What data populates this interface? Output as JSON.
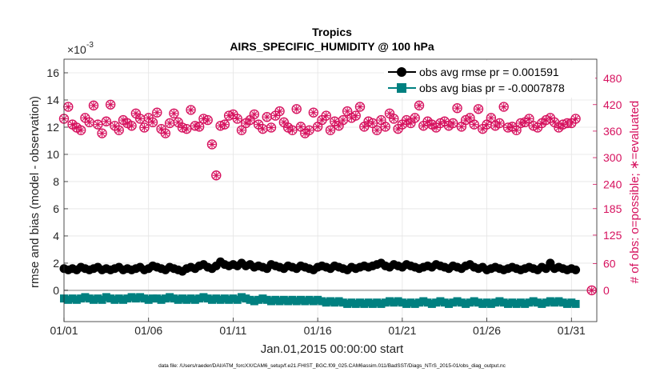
{
  "chart_data": {
    "type": "scatter",
    "title": "Tropics",
    "subtitle": "AIRS_SPECIFIC_HUMIDITY @ 100 hPa",
    "xlabel": "Jan.01,2015 00:00:00 start",
    "ylabel_left": "rmse and bias (model - observation)",
    "ylabel_right": "# of obs: o=possible; ∗=evaluated",
    "exponent_label": "×10",
    "exponent_power": "-3",
    "footer": "data file: /Users/raeder/DAI/ATM_forcXX/CAM6_setup/f.e21.FHIST_BGC.f09_025.CAM6assim.011/BadSST/Diags_NTrS_2015-01/obs_diag_output.nc",
    "x_ticks": [
      "01/01",
      "01/06",
      "01/11",
      "01/16",
      "01/21",
      "01/26",
      "01/31"
    ],
    "x_tick_values": [
      1,
      6,
      11,
      16,
      21,
      26,
      31
    ],
    "xlim": [
      1,
      32.5
    ],
    "y_left_ticks": [
      "0",
      "2",
      "4",
      "6",
      "8",
      "10",
      "12",
      "14",
      "16"
    ],
    "y_left_lim": [
      -2.3,
      17
    ],
    "y_right_ticks": [
      "0",
      "60",
      "125",
      "185",
      "240",
      "300",
      "360",
      "420",
      "480"
    ],
    "y_right_tick_positions_left_units": [
      0,
      1.96,
      4.06,
      6.01,
      7.8,
      9.76,
      11.71,
      13.66,
      15.6
    ],
    "grid": true,
    "legend_placement": "top-right",
    "legend": [
      {
        "label": "obs avg rmse pr = 0.001591",
        "color": "#000000",
        "marker": "circle"
      },
      {
        "label": "obs avg bias pr = -0.0007878",
        "color": "#008080",
        "marker": "square"
      }
    ],
    "colors": {
      "rmse": "#000000",
      "bias": "#008080",
      "obs": "#d6115e",
      "zero_line": "#b0b0b0",
      "grid": "#e4e4e4"
    },
    "series": [
      {
        "name": "obs avg rmse pr = 0.001591",
        "x": [
          1.0,
          1.25,
          1.5,
          1.75,
          2.0,
          2.25,
          2.5,
          2.75,
          3.0,
          3.25,
          3.5,
          3.75,
          4.0,
          4.25,
          4.5,
          4.75,
          5.0,
          5.25,
          5.5,
          5.75,
          6.0,
          6.25,
          6.5,
          6.75,
          7.0,
          7.25,
          7.5,
          7.75,
          8.0,
          8.25,
          8.5,
          8.75,
          9.0,
          9.25,
          9.5,
          9.75,
          10.0,
          10.25,
          10.5,
          10.75,
          11.0,
          11.25,
          11.5,
          11.75,
          12.0,
          12.25,
          12.5,
          12.75,
          13.0,
          13.25,
          13.5,
          13.75,
          14.0,
          14.25,
          14.5,
          14.75,
          15.0,
          15.25,
          15.5,
          15.75,
          16.0,
          16.25,
          16.5,
          16.75,
          17.0,
          17.25,
          17.5,
          17.75,
          18.0,
          18.25,
          18.5,
          18.75,
          19.0,
          19.25,
          19.5,
          19.75,
          20.0,
          20.25,
          20.5,
          20.75,
          21.0,
          21.25,
          21.5,
          21.75,
          22.0,
          22.25,
          22.5,
          22.75,
          23.0,
          23.25,
          23.5,
          23.75,
          24.0,
          24.25,
          24.5,
          24.75,
          25.0,
          25.25,
          25.5,
          25.75,
          26.0,
          26.25,
          26.5,
          26.75,
          27.0,
          27.25,
          27.5,
          27.75,
          28.0,
          28.25,
          28.5,
          28.75,
          29.0,
          29.25,
          29.5,
          29.75,
          30.0,
          30.25,
          30.5,
          30.75,
          31.0,
          31.25
        ],
        "values": [
          1.6,
          1.5,
          1.6,
          1.5,
          1.7,
          1.6,
          1.5,
          1.6,
          1.7,
          1.5,
          1.6,
          1.5,
          1.6,
          1.7,
          1.5,
          1.6,
          1.5,
          1.6,
          1.7,
          1.5,
          1.6,
          1.8,
          1.7,
          1.6,
          1.5,
          1.7,
          1.6,
          1.5,
          1.4,
          1.6,
          1.7,
          1.6,
          1.8,
          1.9,
          1.7,
          1.6,
          1.8,
          2.1,
          1.9,
          1.8,
          1.9,
          1.8,
          2.0,
          1.8,
          1.9,
          1.7,
          1.8,
          1.7,
          1.6,
          1.9,
          1.8,
          1.7,
          1.6,
          1.8,
          1.7,
          1.6,
          1.8,
          1.7,
          1.6,
          1.5,
          1.7,
          1.8,
          1.7,
          1.6,
          1.8,
          1.7,
          1.6,
          1.5,
          1.7,
          1.6,
          1.7,
          1.8,
          1.7,
          1.8,
          1.9,
          2.0,
          1.8,
          1.7,
          1.9,
          1.8,
          1.7,
          1.9,
          1.8,
          1.7,
          1.6,
          1.7,
          1.8,
          1.7,
          1.9,
          1.8,
          1.7,
          1.6,
          1.8,
          1.7,
          1.6,
          1.8,
          1.9,
          1.7,
          1.6,
          1.7,
          1.5,
          1.6,
          1.7,
          1.6,
          1.5,
          1.6,
          1.7,
          1.6,
          1.5,
          1.6,
          1.7,
          1.6,
          1.5,
          1.7,
          1.6,
          2.0,
          1.6,
          1.7,
          1.6,
          1.5,
          1.6,
          1.5
        ]
      },
      {
        "name": "obs avg bias pr = -0.0007878",
        "x": [
          1.0,
          1.25,
          1.5,
          1.75,
          2.0,
          2.25,
          2.5,
          2.75,
          3.0,
          3.25,
          3.5,
          3.75,
          4.0,
          4.25,
          4.5,
          4.75,
          5.0,
          5.25,
          5.5,
          5.75,
          6.0,
          6.25,
          6.5,
          6.75,
          7.0,
          7.25,
          7.5,
          7.75,
          8.0,
          8.25,
          8.5,
          8.75,
          9.0,
          9.25,
          9.5,
          9.75,
          10.0,
          10.25,
          10.5,
          10.75,
          11.0,
          11.25,
          11.5,
          11.75,
          12.0,
          12.25,
          12.5,
          12.75,
          13.0,
          13.25,
          13.5,
          13.75,
          14.0,
          14.25,
          14.5,
          14.75,
          15.0,
          15.25,
          15.5,
          15.75,
          16.0,
          16.25,
          16.5,
          16.75,
          17.0,
          17.25,
          17.5,
          17.75,
          18.0,
          18.25,
          18.5,
          18.75,
          19.0,
          19.25,
          19.5,
          19.75,
          20.0,
          20.25,
          20.5,
          20.75,
          21.0,
          21.25,
          21.5,
          21.75,
          22.0,
          22.25,
          22.5,
          22.75,
          23.0,
          23.25,
          23.5,
          23.75,
          24.0,
          24.25,
          24.5,
          24.75,
          25.0,
          25.25,
          25.5,
          25.75,
          26.0,
          26.25,
          26.5,
          26.75,
          27.0,
          27.25,
          27.5,
          27.75,
          28.0,
          28.25,
          28.5,
          28.75,
          29.0,
          29.25,
          29.5,
          29.75,
          30.0,
          30.25,
          30.5,
          30.75,
          31.0,
          31.25
        ],
        "values": [
          -0.6,
          -0.7,
          -0.6,
          -0.7,
          -0.6,
          -0.5,
          -0.6,
          -0.7,
          -0.6,
          -0.7,
          -0.5,
          -0.6,
          -0.7,
          -0.6,
          -0.7,
          -0.6,
          -0.5,
          -0.6,
          -0.5,
          -0.6,
          -0.7,
          -0.6,
          -0.6,
          -0.7,
          -0.6,
          -0.5,
          -0.6,
          -0.7,
          -0.6,
          -0.7,
          -0.6,
          -0.7,
          -0.6,
          -0.5,
          -0.6,
          -0.7,
          -0.6,
          -0.7,
          -0.6,
          -0.7,
          -0.6,
          -0.7,
          -0.5,
          -0.6,
          -0.7,
          -0.8,
          -0.7,
          -0.6,
          -0.7,
          -0.8,
          -0.7,
          -0.8,
          -0.7,
          -0.8,
          -0.7,
          -0.8,
          -0.7,
          -0.8,
          -0.7,
          -0.8,
          -0.7,
          -0.8,
          -0.9,
          -0.8,
          -0.9,
          -0.8,
          -0.9,
          -1.0,
          -0.9,
          -1.0,
          -0.9,
          -1.0,
          -0.9,
          -1.0,
          -0.9,
          -1.0,
          -0.9,
          -0.8,
          -0.9,
          -0.8,
          -0.9,
          -1.0,
          -0.9,
          -1.0,
          -0.9,
          -0.8,
          -0.9,
          -1.0,
          -0.9,
          -0.8,
          -0.9,
          -1.0,
          -0.9,
          -0.8,
          -0.9,
          -1.0,
          -0.9,
          -0.8,
          -0.9,
          -1.0,
          -0.9,
          -1.0,
          -0.9,
          -0.8,
          -0.9,
          -1.0,
          -0.9,
          -1.0,
          -0.9,
          -1.0,
          -0.9,
          -0.8,
          -0.9,
          -1.0,
          -0.9,
          -0.8,
          -0.9,
          -0.8,
          -0.9,
          -1.0,
          -0.9,
          -1.0
        ]
      },
      {
        "name": "# of obs possible",
        "axis": "right",
        "x": [
          1.0,
          1.25,
          1.5,
          1.75,
          2.0,
          2.25,
          2.5,
          2.75,
          3.0,
          3.25,
          3.5,
          3.75,
          4.0,
          4.25,
          4.5,
          4.75,
          5.0,
          5.25,
          5.5,
          5.75,
          6.0,
          6.25,
          6.5,
          6.75,
          7.0,
          7.25,
          7.5,
          7.75,
          8.0,
          8.25,
          8.5,
          8.75,
          9.0,
          9.25,
          9.5,
          9.75,
          10.0,
          10.25,
          10.5,
          10.75,
          11.0,
          11.25,
          11.5,
          11.75,
          12.0,
          12.25,
          12.5,
          12.75,
          13.0,
          13.25,
          13.5,
          13.75,
          14.0,
          14.25,
          14.5,
          14.75,
          15.0,
          15.25,
          15.5,
          15.75,
          16.0,
          16.25,
          16.5,
          16.75,
          17.0,
          17.25,
          17.5,
          17.75,
          18.0,
          18.25,
          18.5,
          18.75,
          19.0,
          19.25,
          19.5,
          19.75,
          20.0,
          20.25,
          20.5,
          20.75,
          21.0,
          21.25,
          21.5,
          21.75,
          22.0,
          22.25,
          22.5,
          22.75,
          23.0,
          23.25,
          23.5,
          23.75,
          24.0,
          24.25,
          24.5,
          24.75,
          25.0,
          25.25,
          25.5,
          25.75,
          26.0,
          26.25,
          26.5,
          26.75,
          27.0,
          27.25,
          27.5,
          27.75,
          28.0,
          28.25,
          28.5,
          28.75,
          29.0,
          29.25,
          29.5,
          29.75,
          30.0,
          30.25,
          30.5,
          30.75,
          31.0,
          31.25,
          32.2
        ],
        "values": [
          388,
          415,
          375,
          368,
          362,
          390,
          380,
          418,
          375,
          355,
          382,
          420,
          372,
          362,
          385,
          378,
          372,
          400,
          388,
          368,
          390,
          380,
          402,
          365,
          355,
          378,
          400,
          380,
          368,
          365,
          408,
          372,
          370,
          388,
          385,
          330,
          260,
          372,
          375,
          395,
          398,
          388,
          362,
          378,
          385,
          398,
          375,
          365,
          392,
          368,
          395,
          405,
          380,
          368,
          362,
          410,
          370,
          355,
          362,
          402,
          370,
          385,
          395,
          362,
          382,
          372,
          385,
          405,
          390,
          395,
          415,
          370,
          382,
          378,
          362,
          385,
          370,
          400,
          388,
          365,
          375,
          385,
          378,
          390,
          418,
          372,
          382,
          375,
          368,
          378,
          382,
          372,
          378,
          412,
          370,
          385,
          390,
          375,
          410,
          365,
          375,
          390,
          372,
          378,
          415,
          368,
          370,
          362,
          378,
          380,
          388,
          372,
          368,
          378,
          385,
          390,
          380,
          368,
          375,
          378,
          378,
          388,
          0
        ]
      }
    ]
  }
}
